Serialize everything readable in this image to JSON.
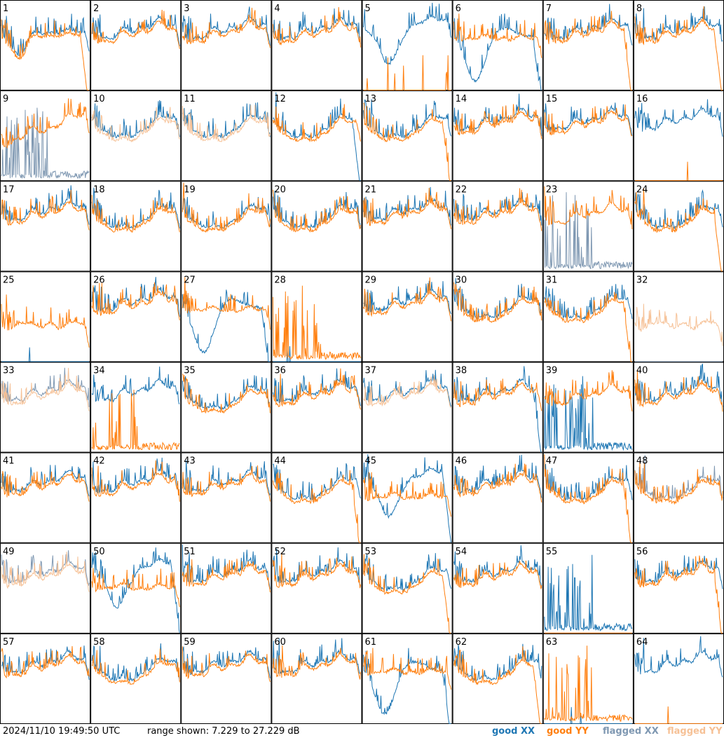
{
  "colors": {
    "good_xx": "#1f77b4",
    "good_yy": "#ff7f0e",
    "flagged_xx": "#7f98b2",
    "flagged_yy": "#f6c196"
  },
  "footer": {
    "timestamp": "2024/11/10 19:49:50 UTC",
    "range_text": "range shown: 7.229 to 27.229 dB"
  },
  "legend": {
    "good_xx": "good XX",
    "good_yy": "good YY",
    "flagged_xx": "flagged XX",
    "flagged_yy": "flagged YY"
  },
  "chart_data": {
    "type": "line",
    "layout": "8x8 small multiples of antenna spectra",
    "ylim": [
      7.229,
      27.229
    ],
    "yunit": "dB",
    "grid": false,
    "legend_placement": "bottom-right",
    "panels": [
      {
        "label": "1",
        "xx": "good",
        "yy": "good",
        "shape": "lowdip",
        "yy_edge": "rolloff"
      },
      {
        "label": "2",
        "xx": "good",
        "yy": "good",
        "shape": "wavy"
      },
      {
        "label": "3",
        "xx": "good",
        "yy": "good",
        "shape": "wavy"
      },
      {
        "label": "4",
        "xx": "good",
        "yy": "good",
        "shape": "wavy"
      },
      {
        "label": "5",
        "xx": "good",
        "yy": "good",
        "shape": "xxdip",
        "yy_mode": "dead"
      },
      {
        "label": "6",
        "xx": "good",
        "yy": "good",
        "shape": "deep_xx",
        "xx_edge": "rolloff"
      },
      {
        "label": "7",
        "xx": "good",
        "yy": "good",
        "shape": "wavy",
        "yy_edge": "rolloff"
      },
      {
        "label": "8",
        "xx": "good",
        "yy": "good",
        "shape": "wavy",
        "yy_edge": "rolloff"
      },
      {
        "label": "9",
        "xx": "flagged",
        "yy": "good",
        "shape": "rising",
        "xx_mode": "spiky_low"
      },
      {
        "label": "10",
        "xx": "good",
        "yy": "flagged",
        "shape": "bowl"
      },
      {
        "label": "11",
        "xx": "good",
        "yy": "flagged",
        "shape": "bowl"
      },
      {
        "label": "12",
        "xx": "good",
        "yy": "good",
        "shape": "bowl",
        "xx_edge": "rolloff"
      },
      {
        "label": "13",
        "xx": "good",
        "yy": "good",
        "shape": "bowl",
        "yy_edge": "rolloff"
      },
      {
        "label": "14",
        "xx": "good",
        "yy": "good",
        "shape": "wavy"
      },
      {
        "label": "15",
        "xx": "good",
        "yy": "good",
        "shape": "wavy"
      },
      {
        "label": "16",
        "xx": "good",
        "yy": "good",
        "shape": "wavy",
        "yy_mode": "dead"
      },
      {
        "label": "17",
        "xx": "good",
        "yy": "good",
        "shape": "wavy"
      },
      {
        "label": "18",
        "xx": "good",
        "yy": "good",
        "shape": "bowl"
      },
      {
        "label": "19",
        "xx": "good",
        "yy": "good",
        "shape": "bowl"
      },
      {
        "label": "20",
        "xx": "good",
        "yy": "good",
        "shape": "bowl"
      },
      {
        "label": "21",
        "xx": "good",
        "yy": "good",
        "shape": "wavy"
      },
      {
        "label": "22",
        "xx": "good",
        "yy": "good",
        "shape": "wavy"
      },
      {
        "label": "23",
        "xx": "flagged",
        "yy": "good",
        "shape": "wavy",
        "xx_mode": "spiky_low"
      },
      {
        "label": "24",
        "xx": "good",
        "yy": "good",
        "shape": "bowl",
        "yy_edge": "rolloff"
      },
      {
        "label": "25",
        "xx": "good",
        "yy": "good",
        "shape": "flat",
        "xx_mode": "dead"
      },
      {
        "label": "26",
        "xx": "good",
        "yy": "good",
        "shape": "wavy"
      },
      {
        "label": "27",
        "xx": "good",
        "yy": "good",
        "shape": "deep_xx",
        "xx_edge": "rolloff"
      },
      {
        "label": "28",
        "xx": "good",
        "yy": "good",
        "shape": "wavy",
        "xx_mode": "dead",
        "yy_mode": "spiky_low"
      },
      {
        "label": "29",
        "xx": "good",
        "yy": "good",
        "shape": "wavy"
      },
      {
        "label": "30",
        "xx": "good",
        "yy": "good",
        "shape": "bowl"
      },
      {
        "label": "31",
        "xx": "good",
        "yy": "good",
        "shape": "bowl",
        "yy_edge": "rolloff"
      },
      {
        "label": "32",
        "xx": "flagged",
        "yy": "flagged",
        "shape": "flat",
        "xx_mode": "dead"
      },
      {
        "label": "33",
        "xx": "flagged",
        "yy": "flagged",
        "shape": "wavy"
      },
      {
        "label": "34",
        "xx": "good",
        "yy": "good",
        "shape": "wavy",
        "yy_mode": "spiky_low"
      },
      {
        "label": "35",
        "xx": "good",
        "yy": "good",
        "shape": "bowl"
      },
      {
        "label": "36",
        "xx": "good",
        "yy": "good",
        "shape": "wavy"
      },
      {
        "label": "37",
        "xx": "good",
        "yy": "flagged",
        "shape": "wavy"
      },
      {
        "label": "38",
        "xx": "good",
        "yy": "good",
        "shape": "wavy",
        "xx_edge": "rolloff"
      },
      {
        "label": "39",
        "xx": "good",
        "yy": "good",
        "shape": "wavy",
        "xx_mode": "spiky_low"
      },
      {
        "label": "40",
        "xx": "good",
        "yy": "good",
        "shape": "wavy"
      },
      {
        "label": "41",
        "xx": "good",
        "yy": "good",
        "shape": "wavy"
      },
      {
        "label": "42",
        "xx": "good",
        "yy": "good",
        "shape": "wavy"
      },
      {
        "label": "43",
        "xx": "good",
        "yy": "good",
        "shape": "wavy"
      },
      {
        "label": "44",
        "xx": "good",
        "yy": "good",
        "shape": "bowl",
        "yy_edge": "rolloff"
      },
      {
        "label": "45",
        "xx": "good",
        "yy": "good",
        "shape": "xxdip",
        "xx_edge": "rolloff"
      },
      {
        "label": "46",
        "xx": "good",
        "yy": "good",
        "shape": "wavy"
      },
      {
        "label": "47",
        "xx": "good",
        "yy": "good",
        "shape": "bowl",
        "yy_edge": "rolloff"
      },
      {
        "label": "48",
        "xx": "flagged",
        "yy": "good",
        "shape": "bowl"
      },
      {
        "label": "49",
        "xx": "flagged",
        "yy": "flagged",
        "shape": "wavy"
      },
      {
        "label": "50",
        "xx": "good",
        "yy": "good",
        "shape": "xxdip",
        "xx_edge": "rolloff"
      },
      {
        "label": "51",
        "xx": "good",
        "yy": "good",
        "shape": "wavy"
      },
      {
        "label": "52",
        "xx": "good",
        "yy": "good",
        "shape": "wavy"
      },
      {
        "label": "53",
        "xx": "good",
        "yy": "good",
        "shape": "bowl",
        "yy_edge": "rolloff"
      },
      {
        "label": "54",
        "xx": "good",
        "yy": "good",
        "shape": "wavy"
      },
      {
        "label": "55",
        "xx": "good",
        "yy": "good",
        "shape": "wavy",
        "xx_mode": "spiky_low",
        "yy_mode": "dead"
      },
      {
        "label": "56",
        "xx": "good",
        "yy": "good",
        "shape": "wavy",
        "yy_edge": "rolloff"
      },
      {
        "label": "57",
        "xx": "good",
        "yy": "good",
        "shape": "wavy"
      },
      {
        "label": "58",
        "xx": "good",
        "yy": "good",
        "shape": "bowl"
      },
      {
        "label": "59",
        "xx": "good",
        "yy": "good",
        "shape": "wavy"
      },
      {
        "label": "60",
        "xx": "good",
        "yy": "good",
        "shape": "wavy"
      },
      {
        "label": "61",
        "xx": "good",
        "yy": "good",
        "shape": "deep_xx",
        "xx_edge": "rolloff"
      },
      {
        "label": "62",
        "xx": "good",
        "yy": "good",
        "shape": "bowl",
        "yy_edge": "rolloff"
      },
      {
        "label": "63",
        "xx": "good",
        "yy": "good",
        "shape": "wavy",
        "xx_mode": "dead",
        "yy_mode": "spiky_low"
      },
      {
        "label": "64",
        "xx": "good",
        "yy": "good",
        "shape": "wavy",
        "yy_mode": "dead"
      }
    ]
  }
}
